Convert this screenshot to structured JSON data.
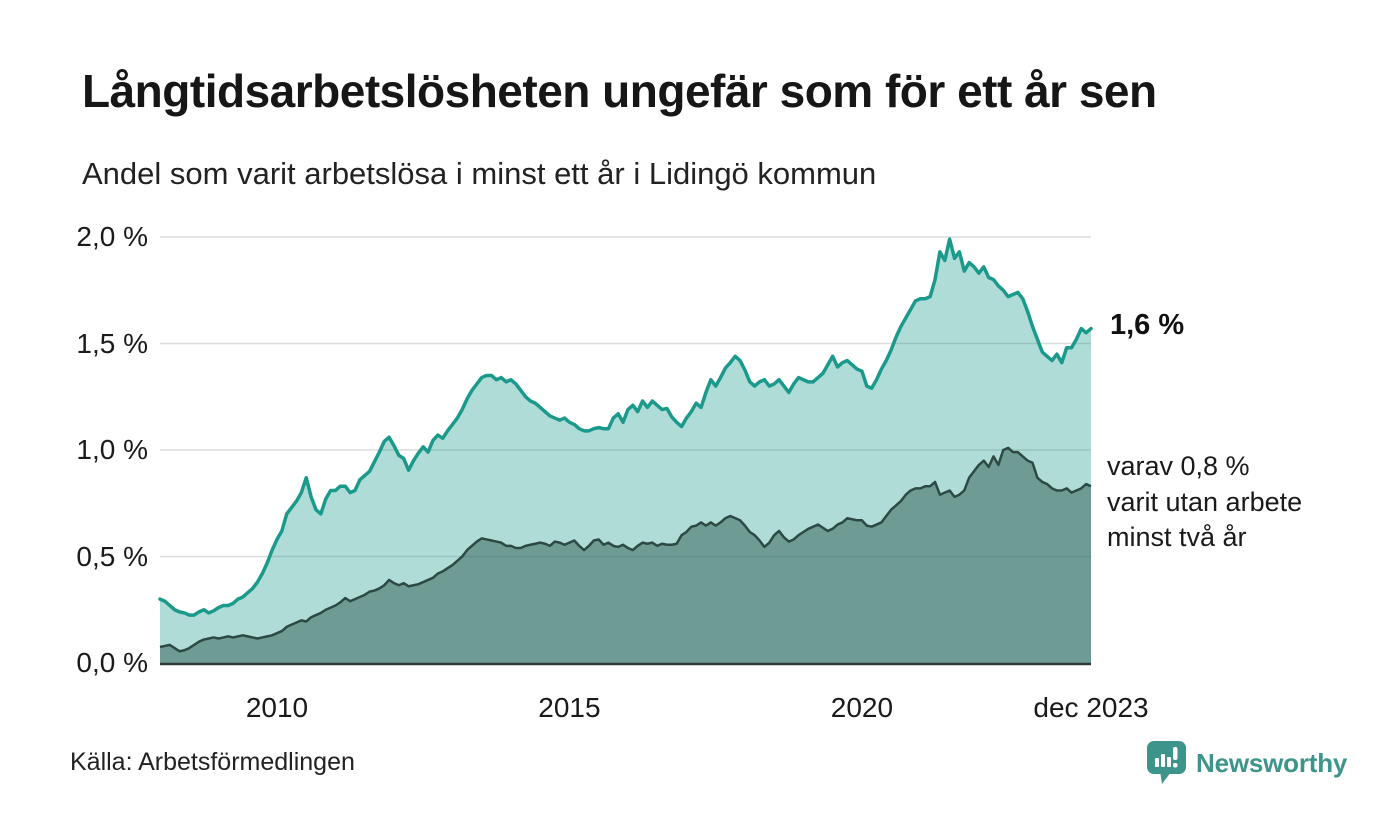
{
  "title": "Långtidsarbetslösheten ungefär som för ett år sen",
  "subtitle": "Andel som varit arbetslösa i minst ett år i Lidingö kommun",
  "source": "Källa: Arbetsförmedlingen",
  "logo": {
    "text": "Newsworthy",
    "icon": "speech-bubble-bar-chart-icon",
    "color": "#3d948a"
  },
  "colors": {
    "line_total": "#1b9a8c",
    "fill_total": "rgba(27,154,140,0.35)",
    "line_two_years": "#2c4a43",
    "fill_two_years": "rgba(30,77,69,0.45)",
    "gridline": "#dcdcdc",
    "axis_line": "#2f3b37",
    "text": "#1a1a1a"
  },
  "chart_data": {
    "type": "area",
    "frequency": "monthly",
    "start": "2008-01",
    "end": "2023-12",
    "unit": "%",
    "ylim": [
      0,
      2.0
    ],
    "grid": "horizontal",
    "yticks": [
      {
        "value": 0.0,
        "label": "0,0 %"
      },
      {
        "value": 0.5,
        "label": "0,5 %"
      },
      {
        "value": 1.0,
        "label": "1,0 %"
      },
      {
        "value": 1.5,
        "label": "1,5 %"
      },
      {
        "value": 2.0,
        "label": "2,0 %"
      }
    ],
    "xticks": [
      {
        "index": 24,
        "label": "2010"
      },
      {
        "index": 84,
        "label": "2015"
      },
      {
        "index": 144,
        "label": "2020"
      },
      {
        "index": 191,
        "label": "dec 2023"
      }
    ],
    "series": [
      {
        "name": "Arbetslösa minst ett år",
        "end_label": "1,6 %",
        "end_value": 1.6,
        "values": [
          0.3,
          0.29,
          0.27,
          0.25,
          0.24,
          0.235,
          0.225,
          0.225,
          0.24,
          0.25,
          0.235,
          0.245,
          0.26,
          0.27,
          0.27,
          0.28,
          0.3,
          0.31,
          0.33,
          0.35,
          0.38,
          0.42,
          0.47,
          0.53,
          0.58,
          0.62,
          0.7,
          0.73,
          0.76,
          0.8,
          0.87,
          0.78,
          0.72,
          0.7,
          0.77,
          0.81,
          0.81,
          0.83,
          0.83,
          0.8,
          0.81,
          0.86,
          0.88,
          0.9,
          0.945,
          0.99,
          1.04,
          1.06,
          1.02,
          0.975,
          0.96,
          0.905,
          0.95,
          0.985,
          1.015,
          0.99,
          1.045,
          1.07,
          1.055,
          1.09,
          1.12,
          1.15,
          1.19,
          1.24,
          1.28,
          1.31,
          1.34,
          1.35,
          1.35,
          1.33,
          1.34,
          1.32,
          1.33,
          1.31,
          1.28,
          1.25,
          1.23,
          1.22,
          1.2,
          1.18,
          1.16,
          1.15,
          1.14,
          1.15,
          1.13,
          1.12,
          1.1,
          1.09,
          1.09,
          1.1,
          1.105,
          1.1,
          1.1,
          1.15,
          1.17,
          1.13,
          1.19,
          1.21,
          1.18,
          1.23,
          1.2,
          1.23,
          1.21,
          1.19,
          1.195,
          1.155,
          1.13,
          1.11,
          1.15,
          1.18,
          1.22,
          1.2,
          1.27,
          1.33,
          1.3,
          1.34,
          1.385,
          1.41,
          1.44,
          1.42,
          1.375,
          1.32,
          1.3,
          1.32,
          1.33,
          1.3,
          1.31,
          1.33,
          1.3,
          1.27,
          1.31,
          1.34,
          1.33,
          1.32,
          1.32,
          1.34,
          1.36,
          1.4,
          1.44,
          1.39,
          1.41,
          1.42,
          1.4,
          1.38,
          1.37,
          1.3,
          1.29,
          1.33,
          1.38,
          1.42,
          1.47,
          1.53,
          1.58,
          1.62,
          1.66,
          1.7,
          1.71,
          1.71,
          1.72,
          1.8,
          1.93,
          1.89,
          1.99,
          1.9,
          1.93,
          1.84,
          1.88,
          1.86,
          1.83,
          1.86,
          1.81,
          1.8,
          1.77,
          1.75,
          1.72,
          1.73,
          1.74,
          1.71,
          1.65,
          1.58,
          1.52,
          1.46,
          1.44,
          1.42,
          1.45,
          1.41,
          1.48,
          1.48,
          1.52,
          1.57,
          1.55,
          1.57
        ]
      },
      {
        "name": "varav utan arbete minst två år",
        "end_label_lines": [
          "varav 0,8 %",
          "varit utan arbete",
          "minst två år"
        ],
        "end_value": 0.8,
        "values": [
          0.075,
          0.08,
          0.085,
          0.07,
          0.055,
          0.06,
          0.07,
          0.085,
          0.1,
          0.11,
          0.115,
          0.12,
          0.115,
          0.12,
          0.125,
          0.12,
          0.125,
          0.13,
          0.125,
          0.12,
          0.115,
          0.12,
          0.125,
          0.13,
          0.14,
          0.15,
          0.17,
          0.18,
          0.19,
          0.2,
          0.195,
          0.215,
          0.225,
          0.235,
          0.25,
          0.26,
          0.27,
          0.285,
          0.305,
          0.29,
          0.3,
          0.31,
          0.32,
          0.335,
          0.34,
          0.35,
          0.365,
          0.39,
          0.375,
          0.365,
          0.375,
          0.36,
          0.365,
          0.37,
          0.38,
          0.39,
          0.4,
          0.42,
          0.43,
          0.445,
          0.46,
          0.48,
          0.5,
          0.53,
          0.55,
          0.57,
          0.585,
          0.58,
          0.575,
          0.57,
          0.565,
          0.55,
          0.55,
          0.54,
          0.54,
          0.55,
          0.555,
          0.56,
          0.565,
          0.56,
          0.55,
          0.57,
          0.565,
          0.555,
          0.565,
          0.575,
          0.55,
          0.53,
          0.55,
          0.575,
          0.58,
          0.555,
          0.565,
          0.55,
          0.545,
          0.555,
          0.54,
          0.53,
          0.55,
          0.565,
          0.56,
          0.565,
          0.55,
          0.56,
          0.555,
          0.555,
          0.56,
          0.6,
          0.615,
          0.64,
          0.645,
          0.66,
          0.645,
          0.66,
          0.645,
          0.66,
          0.68,
          0.69,
          0.68,
          0.67,
          0.645,
          0.615,
          0.6,
          0.575,
          0.545,
          0.565,
          0.6,
          0.62,
          0.59,
          0.57,
          0.58,
          0.6,
          0.615,
          0.63,
          0.64,
          0.65,
          0.635,
          0.62,
          0.63,
          0.65,
          0.66,
          0.68,
          0.675,
          0.67,
          0.67,
          0.645,
          0.64,
          0.65,
          0.66,
          0.69,
          0.72,
          0.74,
          0.76,
          0.79,
          0.81,
          0.82,
          0.82,
          0.83,
          0.83,
          0.85,
          0.79,
          0.8,
          0.81,
          0.78,
          0.79,
          0.81,
          0.87,
          0.9,
          0.93,
          0.95,
          0.92,
          0.97,
          0.93,
          1.0,
          1.01,
          0.99,
          0.99,
          0.97,
          0.95,
          0.94,
          0.87,
          0.85,
          0.84,
          0.82,
          0.81,
          0.81,
          0.82,
          0.8,
          0.81,
          0.82,
          0.84,
          0.83
        ]
      }
    ]
  }
}
